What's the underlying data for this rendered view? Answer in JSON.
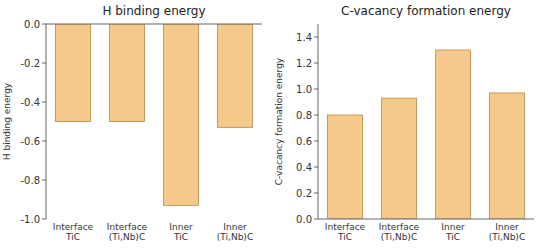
{
  "chart_data": [
    {
      "type": "bar",
      "title": "H binding energy",
      "y_label": "H binding energy",
      "categories": [
        "Interface\nTiC",
        "Interface\n(Ti,Nb)C",
        "Inner\nTiC",
        "Inner\n(Ti,Nb)C"
      ],
      "values": [
        -0.5,
        -0.5,
        -0.93,
        -0.53
      ],
      "color": "#F5C98A",
      "ylim": [
        -1.0,
        0.0
      ],
      "yticks": [
        {
          "value": 0.0,
          "label": "0.0"
        },
        -0.2,
        -0.4,
        -0.6,
        -0.8,
        {
          "value": -1.0,
          "label": "-1.0"
        }
      ],
      "grid": false
    },
    {
      "type": "bar",
      "title": "C-vacancy formation energy",
      "y_label": "C-vacancy formation energy",
      "categories": [
        "Interface\nTiC",
        "Interface\n(Ti,Nb)C",
        "Inner\nTiC",
        "Inner\n(Ti,Nb)C"
      ],
      "values": [
        0.8,
        0.93,
        1.3,
        0.97
      ],
      "color": "#F5C98A",
      "ylim": [
        0.0,
        1.5
      ],
      "yticks": [
        {
          "value": 0.0,
          "label": "0.0"
        },
        0.2,
        0.4,
        0.6,
        0.8,
        {
          "value": 1.0,
          "label": "1.0"
        },
        1.2,
        1.4
      ],
      "grid": false
    }
  ]
}
